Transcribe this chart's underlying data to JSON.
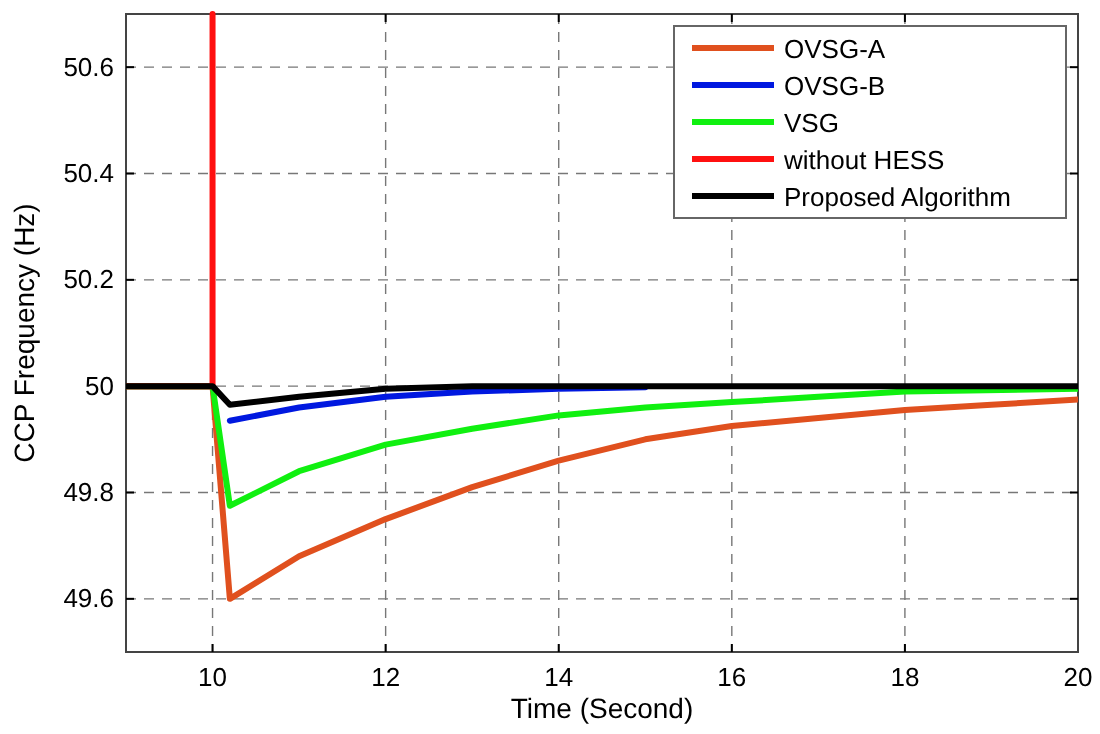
{
  "chart_data": {
    "type": "line",
    "xlabel": "Time (Second)",
    "ylabel": "CCP Frequency (Hz)",
    "xlim": [
      9,
      20
    ],
    "xticks": [
      10,
      12,
      14,
      16,
      18,
      20
    ],
    "ylim": [
      49.5,
      50.7
    ],
    "yticks": [
      49.6,
      49.8,
      50,
      50.2,
      50.4,
      50.6
    ],
    "grid": true,
    "legend": "top right",
    "line_style": "solid",
    "marker": "none",
    "series": [
      {
        "name": "OVSG-A",
        "color": "#e0501e",
        "x": [
          9,
          10,
          10.2,
          11,
          12,
          13,
          14,
          15,
          16,
          17,
          18,
          19,
          20
        ],
        "values": [
          50,
          50,
          49.6,
          49.68,
          49.75,
          49.81,
          49.86,
          49.9,
          49.925,
          49.94,
          49.955,
          49.965,
          49.975
        ]
      },
      {
        "name": "OVSG-B",
        "color": "#0018e0",
        "x": [
          10.2,
          11,
          12,
          13,
          14,
          15
        ],
        "values": [
          49.935,
          49.96,
          49.98,
          49.99,
          49.995,
          49.998
        ]
      },
      {
        "name": "VSG",
        "color": "#10f010",
        "x": [
          9,
          10,
          10.2,
          11,
          12,
          13,
          14,
          15,
          16,
          17,
          18,
          20
        ],
        "values": [
          50,
          50,
          49.775,
          49.84,
          49.89,
          49.92,
          49.945,
          49.96,
          49.97,
          49.98,
          49.99,
          49.995
        ]
      },
      {
        "name": "without HESS",
        "color": "#ff1010",
        "x": [
          9,
          10,
          10
        ],
        "values": [
          50,
          50,
          50.7
        ]
      },
      {
        "name": "Proposed Algorithm",
        "color": "#000000",
        "x": [
          9,
          10,
          10.2,
          11,
          12,
          13,
          20
        ],
        "values": [
          50,
          50,
          49.965,
          49.98,
          49.995,
          50,
          50
        ]
      }
    ]
  }
}
